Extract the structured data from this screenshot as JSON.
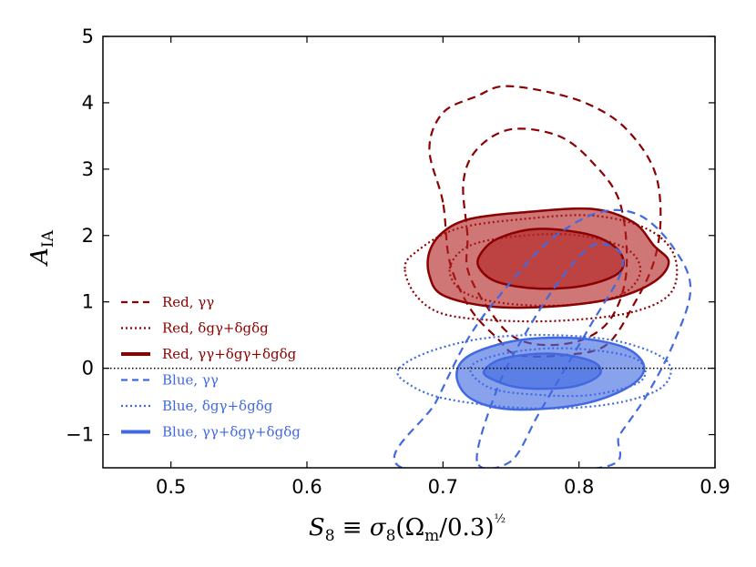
{
  "chart_data": {
    "type": "contour",
    "xlabel": "S_8 ≡ σ_8(Ω_m/0.3)^(1/2)",
    "ylabel": "A_IA",
    "xlim": [
      0.45,
      0.9
    ],
    "ylim": [
      -1.5,
      5
    ],
    "xticks": [
      "0.5",
      "0.6",
      "0.7",
      "0.8",
      "0.9"
    ],
    "yticks": [
      "−1",
      "0",
      "1",
      "2",
      "3",
      "4",
      "5"
    ],
    "reference_line": {
      "y": 0,
      "style": "dotted",
      "color": "#000000"
    },
    "legend_position": "lower-left",
    "colors": {
      "red": "#8b0000",
      "red_fill": "#b22222",
      "blue": "#4169e1",
      "blue_fill": "#4169e1"
    },
    "series": [
      {
        "name": "Red, γγ",
        "color": "#8b0000",
        "style": "dashed",
        "filled": false,
        "contours": [
          {
            "level": "68%",
            "points": [
              [
                0.718,
                2.0
              ],
              [
                0.715,
                2.8
              ],
              [
                0.725,
                3.3
              ],
              [
                0.75,
                3.6
              ],
              [
                0.785,
                3.5
              ],
              [
                0.81,
                3.1
              ],
              [
                0.83,
                2.5
              ],
              [
                0.835,
                1.5
              ],
              [
                0.825,
                0.8
              ],
              [
                0.805,
                0.45
              ],
              [
                0.775,
                0.35
              ],
              [
                0.75,
                0.5
              ],
              [
                0.73,
                1.0
              ],
              [
                0.718,
                1.5
              ]
            ]
          },
          {
            "level": "95%",
            "points": [
              [
                0.7,
                2.5
              ],
              [
                0.69,
                3.3
              ],
              [
                0.7,
                3.85
              ],
              [
                0.725,
                4.1
              ],
              [
                0.745,
                4.25
              ],
              [
                0.78,
                4.15
              ],
              [
                0.81,
                3.95
              ],
              [
                0.835,
                3.6
              ],
              [
                0.855,
                3.0
              ],
              [
                0.86,
                2.3
              ],
              [
                0.855,
                1.6
              ],
              [
                0.84,
                0.95
              ],
              [
                0.82,
                0.35
              ],
              [
                0.79,
                0.2
              ],
              [
                0.755,
                0.2
              ],
              [
                0.74,
                0.45
              ],
              [
                0.72,
                0.9
              ],
              [
                0.705,
                1.6
              ]
            ]
          }
        ]
      },
      {
        "name": "Red, δgγ+δgδg",
        "color": "#8b0000",
        "style": "dotted",
        "filled": false,
        "contours": [
          {
            "level": "68%",
            "points": [
              [
                0.705,
                1.5
              ],
              [
                0.72,
                1.85
              ],
              [
                0.76,
                2.0
              ],
              [
                0.8,
                2.0
              ],
              [
                0.835,
                1.8
              ],
              [
                0.845,
                1.45
              ],
              [
                0.83,
                1.1
              ],
              [
                0.79,
                0.95
              ],
              [
                0.745,
                0.98
              ],
              [
                0.715,
                1.15
              ]
            ]
          },
          {
            "level": "95%",
            "points": [
              [
                0.672,
                1.5
              ],
              [
                0.68,
                1.75
              ],
              [
                0.71,
                2.1
              ],
              [
                0.76,
                2.25
              ],
              [
                0.81,
                2.3
              ],
              [
                0.85,
                2.1
              ],
              [
                0.87,
                1.7
              ],
              [
                0.868,
                1.15
              ],
              [
                0.84,
                0.85
              ],
              [
                0.79,
                0.72
              ],
              [
                0.74,
                0.72
              ],
              [
                0.7,
                0.82
              ],
              [
                0.68,
                1.1
              ]
            ]
          }
        ]
      },
      {
        "name": "Red, γγ+δgγ+δgδg",
        "color": "#8b0000",
        "style": "solid",
        "filled": true,
        "contours": [
          {
            "level": "95%",
            "points": [
              [
                0.69,
                1.75
              ],
              [
                0.7,
                2.05
              ],
              [
                0.72,
                2.25
              ],
              [
                0.76,
                2.35
              ],
              [
                0.81,
                2.4
              ],
              [
                0.84,
                2.2
              ],
              [
                0.855,
                1.85
              ],
              [
                0.866,
                1.6
              ],
              [
                0.855,
                1.3
              ],
              [
                0.825,
                1.05
              ],
              [
                0.78,
                0.93
              ],
              [
                0.735,
                0.93
              ],
              [
                0.7,
                1.1
              ],
              [
                0.69,
                1.4
              ]
            ]
          },
          {
            "level": "68%",
            "points": [
              [
                0.727,
                1.7
              ],
              [
                0.74,
                1.95
              ],
              [
                0.77,
                2.1
              ],
              [
                0.81,
                2.0
              ],
              [
                0.83,
                1.75
              ],
              [
                0.83,
                1.45
              ],
              [
                0.805,
                1.25
              ],
              [
                0.77,
                1.2
              ],
              [
                0.74,
                1.3
              ],
              [
                0.727,
                1.5
              ]
            ]
          }
        ]
      },
      {
        "name": "Blue, γγ",
        "color": "#4169e1",
        "style": "dashed",
        "filled": false,
        "contours": [
          {
            "level": "68%",
            "points": [
              [
                0.725,
                -1.4
              ],
              [
                0.74,
                -0.3
              ],
              [
                0.76,
                0.5
              ],
              [
                0.785,
                1.3
              ],
              [
                0.81,
                1.85
              ],
              [
                0.83,
                1.75
              ],
              [
                0.83,
                1.4
              ],
              [
                0.81,
                0.7
              ],
              [
                0.79,
                0.0
              ],
              [
                0.77,
                -0.7
              ],
              [
                0.75,
                -1.4
              ]
            ]
          },
          {
            "level": "95%",
            "points": [
              [
                0.67,
                -1.5
              ],
              [
                0.695,
                -0.5
              ],
              [
                0.72,
                0.5
              ],
              [
                0.75,
                1.3
              ],
              [
                0.78,
                1.95
              ],
              [
                0.815,
                2.35
              ],
              [
                0.845,
                2.3
              ],
              [
                0.87,
                1.8
              ],
              [
                0.882,
                1.2
              ],
              [
                0.87,
                0.4
              ],
              [
                0.85,
                -0.4
              ],
              [
                0.83,
                -1.0
              ],
              [
                0.815,
                -1.5
              ]
            ]
          }
        ]
      },
      {
        "name": "Blue, δgγ+δgδg",
        "color": "#4169e1",
        "style": "dotted",
        "filled": false,
        "contours": [
          {
            "level": "68%",
            "points": [
              [
                0.72,
                0.0
              ],
              [
                0.74,
                0.2
              ],
              [
                0.78,
                0.3
              ],
              [
                0.82,
                0.25
              ],
              [
                0.845,
                0.1
              ],
              [
                0.845,
                -0.2
              ],
              [
                0.81,
                -0.4
              ],
              [
                0.77,
                -0.4
              ],
              [
                0.735,
                -0.3
              ]
            ]
          },
          {
            "level": "95%",
            "points": [
              [
                0.668,
                0.0
              ],
              [
                0.69,
                0.25
              ],
              [
                0.73,
                0.45
              ],
              [
                0.78,
                0.5
              ],
              [
                0.83,
                0.4
              ],
              [
                0.865,
                0.1
              ],
              [
                0.86,
                -0.3
              ],
              [
                0.82,
                -0.55
              ],
              [
                0.76,
                -0.6
              ],
              [
                0.7,
                -0.45
              ],
              [
                0.672,
                -0.2
              ]
            ]
          }
        ]
      },
      {
        "name": "Blue, γγ+δgγ+δgδg",
        "color": "#4169e1",
        "style": "solid",
        "filled": true,
        "contours": [
          {
            "level": "95%",
            "points": [
              [
                0.71,
                -0.1
              ],
              [
                0.72,
                0.2
              ],
              [
                0.755,
                0.42
              ],
              [
                0.8,
                0.45
              ],
              [
                0.835,
                0.3
              ],
              [
                0.848,
                0.0
              ],
              [
                0.835,
                -0.3
              ],
              [
                0.8,
                -0.55
              ],
              [
                0.75,
                -0.62
              ],
              [
                0.72,
                -0.45
              ]
            ]
          },
          {
            "level": "68%",
            "points": [
              [
                0.73,
                -0.05
              ],
              [
                0.745,
                0.15
              ],
              [
                0.78,
                0.22
              ],
              [
                0.81,
                0.1
              ],
              [
                0.815,
                -0.1
              ],
              [
                0.795,
                -0.28
              ],
              [
                0.76,
                -0.3
              ],
              [
                0.74,
                -0.2
              ]
            ]
          }
        ]
      }
    ]
  }
}
